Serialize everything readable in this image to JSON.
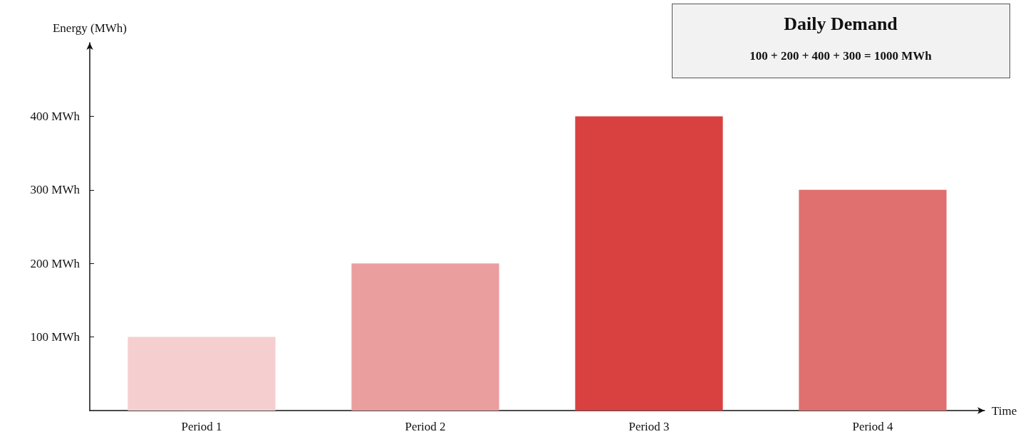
{
  "chart_data": {
    "type": "bar",
    "title": "Daily Demand",
    "subtitle": "100 + 200 + 400 + 300 = 1000 MWh",
    "xlabel": "Time",
    "ylabel": "Energy (MWh)",
    "categories": [
      "Period 1",
      "Period 2",
      "Period 3",
      "Period 4"
    ],
    "values": [
      100,
      200,
      400,
      300
    ],
    "colors": [
      "#f5cfcf",
      "#eb9e9e",
      "#d94040",
      "#e07070"
    ],
    "ylim": [
      0,
      500
    ],
    "yticks": [
      {
        "value": 100,
        "label": "100 MWh"
      },
      {
        "value": 200,
        "label": "200 MWh"
      },
      {
        "value": 300,
        "label": "300 MWh"
      },
      {
        "value": 400,
        "label": "400 MWh"
      }
    ]
  }
}
